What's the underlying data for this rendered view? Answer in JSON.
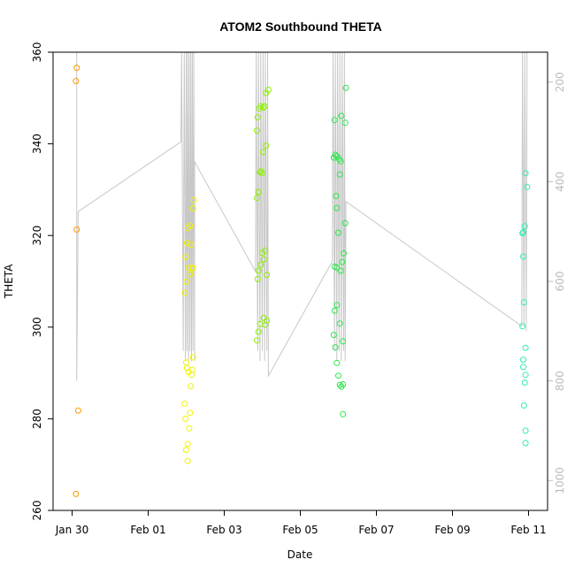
{
  "chart_data": {
    "type": "scatter",
    "title": "ATOM2 Southbound THETA",
    "xlabel": "Date",
    "ylabel": "THETA",
    "x_ticks": [
      "Jan 30",
      "Feb 01",
      "Feb 03",
      "Feb 05",
      "Feb 07",
      "Feb 09",
      "Feb 11"
    ],
    "x_tick_days": [
      0,
      2,
      4,
      6,
      8,
      10,
      12
    ],
    "x_range_days": [
      -0.5,
      12.5
    ],
    "y_ticks": [
      260,
      280,
      300,
      320,
      340,
      360
    ],
    "ylim": [
      260,
      360
    ],
    "right_axis_ticks": [
      200,
      400,
      600,
      800,
      1000
    ],
    "right_axis_range": [
      1060,
      140
    ],
    "right_axis_color": "#bbbbbb",
    "grid": false,
    "legend": "none",
    "series": [
      {
        "color": "#ff9a00",
        "points": [
          [
            0.12,
            356.6
          ],
          [
            0.1,
            353.7
          ],
          [
            0.12,
            321.3
          ],
          [
            0.16,
            281.8
          ],
          [
            0.1,
            263.6
          ]
        ]
      },
      {
        "color": "#f2f200",
        "points": [
          [
            2.96,
            283.3
          ],
          [
            2.98,
            280.0
          ],
          [
            3.0,
            273.2
          ],
          [
            3.04,
            274.5
          ],
          [
            3.04,
            270.8
          ],
          [
            3.08,
            277.9
          ],
          [
            3.1,
            281.3
          ],
          [
            3.12,
            287.1
          ],
          [
            3.0,
            292.3
          ],
          [
            3.02,
            291.1
          ],
          [
            3.06,
            290.2
          ],
          [
            3.14,
            289.6
          ],
          [
            3.16,
            290.7
          ],
          [
            3.18,
            293.4
          ],
          [
            2.96,
            307.5
          ],
          [
            3.0,
            309.9
          ],
          [
            3.06,
            313.0
          ],
          [
            3.1,
            311.5
          ],
          [
            3.16,
            312.8
          ],
          [
            3.18,
            312.9
          ],
          [
            2.98,
            315.3
          ],
          [
            3.02,
            318.4
          ],
          [
            3.04,
            321.6
          ],
          [
            3.1,
            322.1
          ],
          [
            3.12,
            318.0
          ],
          [
            3.18,
            325.9
          ],
          [
            3.2,
            327.7
          ]
        ]
      },
      {
        "color": "#8cf000",
        "points": [
          [
            4.86,
            297.1
          ],
          [
            4.9,
            299.0
          ],
          [
            4.94,
            300.7
          ],
          [
            5.04,
            302.0
          ],
          [
            5.08,
            300.5
          ],
          [
            5.12,
            301.4
          ],
          [
            4.88,
            310.5
          ],
          [
            4.9,
            312.3
          ],
          [
            4.96,
            313.6
          ],
          [
            5.0,
            316.2
          ],
          [
            5.04,
            314.8
          ],
          [
            5.08,
            316.7
          ],
          [
            5.12,
            311.4
          ],
          [
            4.86,
            328.2
          ],
          [
            4.9,
            329.5
          ],
          [
            4.94,
            333.8
          ],
          [
            4.96,
            334.0
          ],
          [
            5.0,
            333.6
          ],
          [
            5.02,
            338.2
          ],
          [
            5.1,
            339.6
          ],
          [
            4.86,
            342.9
          ],
          [
            4.88,
            345.8
          ],
          [
            4.92,
            347.7
          ],
          [
            4.96,
            348.2
          ],
          [
            5.02,
            347.9
          ],
          [
            5.06,
            348.2
          ],
          [
            5.1,
            351.1
          ],
          [
            5.16,
            351.8
          ]
        ]
      },
      {
        "color": "#2ae84a",
        "points": [
          [
            6.88,
            298.3
          ],
          [
            6.92,
            295.6
          ],
          [
            6.96,
            292.2
          ],
          [
            7.0,
            289.4
          ],
          [
            7.04,
            287.4
          ],
          [
            7.08,
            287.0
          ],
          [
            7.12,
            287.5
          ],
          [
            7.12,
            281.0
          ],
          [
            6.9,
            303.6
          ],
          [
            6.96,
            304.8
          ],
          [
            7.04,
            300.8
          ],
          [
            7.12,
            296.9
          ],
          [
            6.9,
            313.2
          ],
          [
            6.96,
            313.0
          ],
          [
            7.06,
            312.3
          ],
          [
            7.1,
            314.2
          ],
          [
            7.14,
            316.1
          ],
          [
            7.18,
            322.7
          ],
          [
            6.94,
            328.6
          ],
          [
            6.96,
            326.0
          ],
          [
            7.0,
            320.6
          ],
          [
            6.88,
            337.0
          ],
          [
            6.92,
            337.6
          ],
          [
            6.96,
            337.3
          ],
          [
            7.02,
            336.7
          ],
          [
            7.06,
            336.2
          ],
          [
            7.04,
            333.3
          ],
          [
            6.9,
            345.2
          ],
          [
            7.08,
            346.1
          ],
          [
            7.18,
            344.6
          ],
          [
            7.2,
            352.2
          ]
        ]
      },
      {
        "color": "#2ef0a8",
        "points": [
          [
            11.84,
            320.5
          ],
          [
            11.86,
            320.7
          ],
          [
            11.9,
            322.0
          ],
          [
            11.86,
            315.4
          ],
          [
            11.88,
            305.4
          ],
          [
            11.84,
            300.2
          ],
          [
            11.92,
            295.5
          ],
          [
            11.86,
            292.9
          ],
          [
            11.86,
            291.3
          ],
          [
            11.92,
            289.6
          ],
          [
            11.9,
            287.9
          ],
          [
            11.88,
            282.9
          ],
          [
            11.92,
            277.4
          ],
          [
            11.92,
            274.7
          ],
          [
            11.92,
            333.6
          ],
          [
            11.96,
            330.6
          ]
        ]
      }
    ],
    "gray_line": {
      "color": "#c8c8c8",
      "description_points_right_axis": [
        [
          0.0,
          140
        ],
        [
          0.12,
          140
        ],
        [
          0.12,
          800
        ],
        [
          0.16,
          460
        ],
        [
          2.86,
          320
        ],
        [
          2.88,
          140
        ],
        [
          2.92,
          740
        ],
        [
          2.95,
          140
        ],
        [
          2.98,
          760
        ],
        [
          3.0,
          140
        ],
        [
          3.02,
          740
        ],
        [
          3.04,
          140
        ],
        [
          3.06,
          760
        ],
        [
          3.08,
          140
        ],
        [
          3.1,
          740
        ],
        [
          3.12,
          140
        ],
        [
          3.14,
          760
        ],
        [
          3.16,
          140
        ],
        [
          3.18,
          740
        ],
        [
          3.2,
          140
        ],
        [
          3.22,
          760
        ],
        [
          3.22,
          360
        ],
        [
          4.82,
          580
        ],
        [
          4.84,
          140
        ],
        [
          4.88,
          740
        ],
        [
          4.9,
          140
        ],
        [
          4.94,
          760
        ],
        [
          4.96,
          140
        ],
        [
          5.0,
          740
        ],
        [
          5.02,
          140
        ],
        [
          5.06,
          760
        ],
        [
          5.08,
          140
        ],
        [
          5.12,
          740
        ],
        [
          5.14,
          140
        ],
        [
          5.16,
          790
        ],
        [
          5.16,
          790
        ],
        [
          6.84,
          560
        ],
        [
          6.86,
          140
        ],
        [
          6.9,
          740
        ],
        [
          6.92,
          140
        ],
        [
          6.96,
          760
        ],
        [
          6.98,
          140
        ],
        [
          7.02,
          740
        ],
        [
          7.04,
          140
        ],
        [
          7.08,
          760
        ],
        [
          7.1,
          140
        ],
        [
          7.14,
          740
        ],
        [
          7.16,
          140
        ],
        [
          7.18,
          760
        ],
        [
          7.2,
          440
        ],
        [
          11.82,
          690
        ],
        [
          11.84,
          140
        ],
        [
          11.88,
          690
        ],
        [
          11.9,
          140
        ],
        [
          11.94,
          700
        ],
        [
          11.96,
          140
        ]
      ]
    }
  }
}
